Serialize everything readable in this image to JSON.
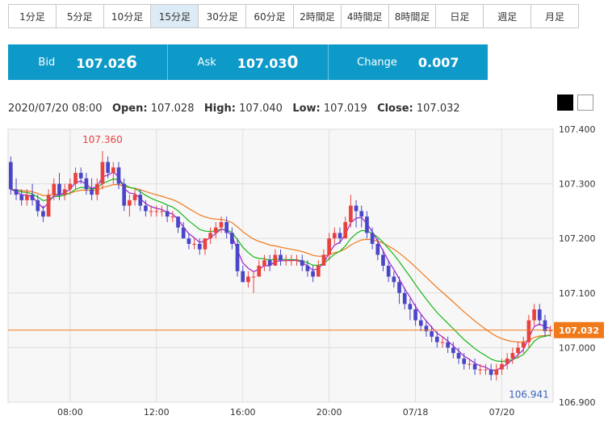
{
  "timeframes": [
    "1分足",
    "5分足",
    "10分足",
    "15分足",
    "30分足",
    "60分足",
    "2時間足",
    "4時間足",
    "8時間足",
    "日足",
    "週足",
    "月足"
  ],
  "active_timeframe": "15分足",
  "quote": {
    "bid_label": "Bid",
    "bid_main": "107.02",
    "bid_pip": "6",
    "ask_label": "Ask",
    "ask_main": "107.03",
    "ask_pip": "0",
    "change_label": "Change",
    "change_value": "0.007"
  },
  "ohlc": {
    "datetime": "2020/07/20 08:00",
    "open_label": "Open:",
    "open": "107.028",
    "high_label": "High:",
    "high": "107.040",
    "low_label": "Low:",
    "low": "107.019",
    "close_label": "Close:",
    "close": "107.032"
  },
  "colors": {
    "quote_bg": "#0e9ac9",
    "up": "#e8423f",
    "down": "#4a46c8",
    "ma_short": "#a020d0",
    "ma_mid": "#18b818",
    "ma_long": "#f07a1a",
    "price_line": "#f07a1a"
  },
  "chart_data": {
    "type": "candlestick",
    "ylim": [
      106.9,
      107.4
    ],
    "y_ticks": [
      106.9,
      107.0,
      107.1,
      107.2,
      107.3,
      107.4
    ],
    "y_tick_labels": [
      "106.900",
      "107.000",
      "107.100",
      "107.200",
      "107.300",
      "107.400"
    ],
    "x_tick_labels": [
      "08:00",
      "12:00",
      "16:00",
      "20:00",
      "07/18",
      "07/20"
    ],
    "x_tick_index": [
      11,
      27,
      43,
      59,
      75,
      91
    ],
    "current_price": 107.032,
    "current_price_label": "107.032",
    "annotations": [
      {
        "text": "107.360",
        "index": 17,
        "value": 107.36,
        "kind": "high"
      },
      {
        "text": "106.941",
        "index": 96,
        "value": 106.941,
        "kind": "low"
      }
    ],
    "candles": [
      [
        107.34,
        107.35,
        107.28,
        107.29
      ],
      [
        107.29,
        107.31,
        107.27,
        107.28
      ],
      [
        107.28,
        107.29,
        107.26,
        107.27
      ],
      [
        107.27,
        107.29,
        107.26,
        107.28
      ],
      [
        107.28,
        107.3,
        107.26,
        107.27
      ],
      [
        107.27,
        107.28,
        107.24,
        107.25
      ],
      [
        107.25,
        107.26,
        107.23,
        107.24
      ],
      [
        107.24,
        107.29,
        107.24,
        107.28
      ],
      [
        107.28,
        107.31,
        107.27,
        107.3
      ],
      [
        107.3,
        107.32,
        107.27,
        107.28
      ],
      [
        107.28,
        107.3,
        107.27,
        107.29
      ],
      [
        107.29,
        107.31,
        107.28,
        107.3
      ],
      [
        107.3,
        107.33,
        107.29,
        107.32
      ],
      [
        107.32,
        107.33,
        107.3,
        107.31
      ],
      [
        107.31,
        107.32,
        107.28,
        107.29
      ],
      [
        107.29,
        107.31,
        107.27,
        107.28
      ],
      [
        107.28,
        107.31,
        107.27,
        107.3
      ],
      [
        107.3,
        107.36,
        107.29,
        107.34
      ],
      [
        107.34,
        107.35,
        107.31,
        107.32
      ],
      [
        107.32,
        107.34,
        107.3,
        107.33
      ],
      [
        107.33,
        107.34,
        107.29,
        107.3
      ],
      [
        107.3,
        107.31,
        107.25,
        107.26
      ],
      [
        107.26,
        107.28,
        107.24,
        107.27
      ],
      [
        107.27,
        107.29,
        107.26,
        107.28
      ],
      [
        107.28,
        107.29,
        107.25,
        107.26
      ],
      [
        107.26,
        107.27,
        107.24,
        107.25
      ],
      [
        107.25,
        107.26,
        107.24,
        107.25
      ],
      [
        107.25,
        107.26,
        107.24,
        107.25
      ],
      [
        107.25,
        107.26,
        107.24,
        107.25
      ],
      [
        107.25,
        107.26,
        107.23,
        107.24
      ],
      [
        107.24,
        107.25,
        107.23,
        107.24
      ],
      [
        107.24,
        107.24,
        107.21,
        107.22
      ],
      [
        107.22,
        107.23,
        107.2,
        107.2
      ],
      [
        107.2,
        107.21,
        107.18,
        107.19
      ],
      [
        107.19,
        107.2,
        107.18,
        107.19
      ],
      [
        107.19,
        107.2,
        107.17,
        107.18
      ],
      [
        107.18,
        107.2,
        107.17,
        107.2
      ],
      [
        107.2,
        107.22,
        107.19,
        107.21
      ],
      [
        107.21,
        107.23,
        107.2,
        107.22
      ],
      [
        107.22,
        107.24,
        107.21,
        107.23
      ],
      [
        107.23,
        107.24,
        107.2,
        107.21
      ],
      [
        107.21,
        107.22,
        107.18,
        107.19
      ],
      [
        107.19,
        107.2,
        107.13,
        107.14
      ],
      [
        107.14,
        107.15,
        107.12,
        107.12
      ],
      [
        107.12,
        107.14,
        107.11,
        107.13
      ],
      [
        107.13,
        107.14,
        107.1,
        107.13
      ],
      [
        107.13,
        107.16,
        107.13,
        107.15
      ],
      [
        107.15,
        107.17,
        107.14,
        107.16
      ],
      [
        107.16,
        107.17,
        107.14,
        107.15
      ],
      [
        107.15,
        107.18,
        107.15,
        107.17
      ],
      [
        107.17,
        107.18,
        107.15,
        107.16
      ],
      [
        107.16,
        107.17,
        107.15,
        107.16
      ],
      [
        107.16,
        107.17,
        107.15,
        107.16
      ],
      [
        107.16,
        107.17,
        107.15,
        107.16
      ],
      [
        107.16,
        107.17,
        107.14,
        107.15
      ],
      [
        107.15,
        107.16,
        107.13,
        107.14
      ],
      [
        107.14,
        107.15,
        107.12,
        107.13
      ],
      [
        107.13,
        107.16,
        107.13,
        107.15
      ],
      [
        107.15,
        107.18,
        107.15,
        107.17
      ],
      [
        107.17,
        107.21,
        107.16,
        107.2
      ],
      [
        107.2,
        107.22,
        107.19,
        107.21
      ],
      [
        107.21,
        107.22,
        107.19,
        107.2
      ],
      [
        107.2,
        107.24,
        107.2,
        107.23
      ],
      [
        107.23,
        107.28,
        107.22,
        107.26
      ],
      [
        107.26,
        107.27,
        107.22,
        107.25
      ],
      [
        107.25,
        107.26,
        107.22,
        107.24
      ],
      [
        107.24,
        107.25,
        107.2,
        107.21
      ],
      [
        107.21,
        107.22,
        107.18,
        107.19
      ],
      [
        107.19,
        107.2,
        107.16,
        107.17
      ],
      [
        107.17,
        107.18,
        107.14,
        107.15
      ],
      [
        107.15,
        107.16,
        107.12,
        107.13
      ],
      [
        107.13,
        107.14,
        107.11,
        107.12
      ],
      [
        107.12,
        107.13,
        107.08,
        107.1
      ],
      [
        107.1,
        107.11,
        107.07,
        107.08
      ],
      [
        107.08,
        107.09,
        107.05,
        107.07
      ],
      [
        107.07,
        107.08,
        107.04,
        107.05
      ],
      [
        107.05,
        107.06,
        107.03,
        107.04
      ],
      [
        107.04,
        107.05,
        107.02,
        107.03
      ],
      [
        107.03,
        107.04,
        107.01,
        107.02
      ],
      [
        107.02,
        107.03,
        107.0,
        107.01
      ],
      [
        107.01,
        107.02,
        107.0,
        107.01
      ],
      [
        107.01,
        107.02,
        106.99,
        107.0
      ],
      [
        107.0,
        107.01,
        106.98,
        106.99
      ],
      [
        106.99,
        107.0,
        106.97,
        106.98
      ],
      [
        106.98,
        106.99,
        106.96,
        106.97
      ],
      [
        106.97,
        106.98,
        106.96,
        106.97
      ],
      [
        106.97,
        106.98,
        106.95,
        106.96
      ],
      [
        106.96,
        106.97,
        106.95,
        106.96
      ],
      [
        106.96,
        106.97,
        106.95,
        106.96
      ],
      [
        106.96,
        106.97,
        106.94,
        106.95
      ],
      [
        106.95,
        106.97,
        106.94,
        106.96
      ],
      [
        106.96,
        106.98,
        106.95,
        106.97
      ],
      [
        106.97,
        106.99,
        106.96,
        106.98
      ],
      [
        106.98,
        107.0,
        106.97,
        106.99
      ],
      [
        106.99,
        107.01,
        106.98,
        107.0
      ],
      [
        107.0,
        107.02,
        106.99,
        107.01
      ],
      [
        107.01,
        107.06,
        107.0,
        107.05
      ],
      [
        107.05,
        107.08,
        107.04,
        107.07
      ],
      [
        107.07,
        107.08,
        107.04,
        107.05
      ],
      [
        107.05,
        107.06,
        107.02,
        107.03
      ],
      [
        107.03,
        107.04,
        107.02,
        107.032
      ]
    ]
  }
}
